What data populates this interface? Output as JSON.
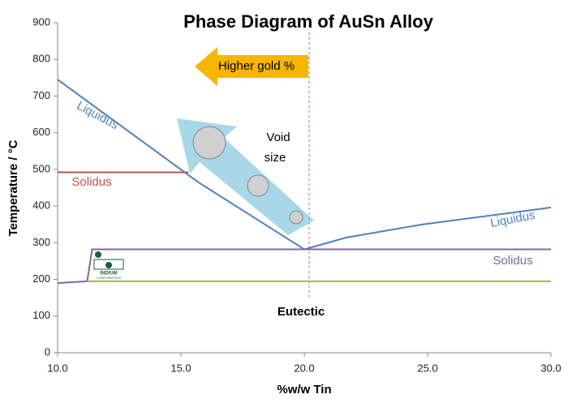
{
  "chart_data": {
    "type": "line",
    "title": "Phase Diagram of AuSn Alloy",
    "x_label": "%w/w Tin",
    "y_label": "Temperature / °C",
    "xlim": [
      10,
      30
    ],
    "ylim": [
      0,
      900
    ],
    "xticks": [
      {
        "value": 10,
        "label": "10.0"
      },
      {
        "value": 15,
        "label": "15.0"
      },
      {
        "value": 20,
        "label": "20.0"
      },
      {
        "value": 25,
        "label": "25.0"
      },
      {
        "value": 30,
        "label": "30.0"
      }
    ],
    "yticks": [
      0,
      100,
      200,
      300,
      400,
      500,
      600,
      700,
      800,
      900
    ],
    "vline": {
      "x": 20.2,
      "color": "#7aa6d6"
    },
    "series": [
      {
        "color": "#4f81bd",
        "x": [
          10,
          15.7,
          20,
          21.7,
          24.8,
          30
        ],
        "values": [
          745,
          465,
          282,
          314,
          350,
          396
        ]
      },
      {
        "color": "#c0504d",
        "x": [
          10,
          15.3
        ],
        "values": [
          492,
          492
        ]
      },
      {
        "color": "#8064a2",
        "x": [
          10,
          11.2,
          11.4,
          30
        ],
        "values": [
          190,
          195,
          282,
          282
        ]
      },
      {
        "color": "#9bbb59",
        "x": [
          11.2,
          30
        ],
        "values": [
          195,
          195
        ]
      }
    ],
    "annotations": [
      "Liquidus",
      "Liquidus",
      "Solidus",
      "Solidus",
      "Higher gold %",
      "Void",
      "size",
      "Eutectic",
      "INDIUM",
      "CORPORATION"
    ]
  }
}
